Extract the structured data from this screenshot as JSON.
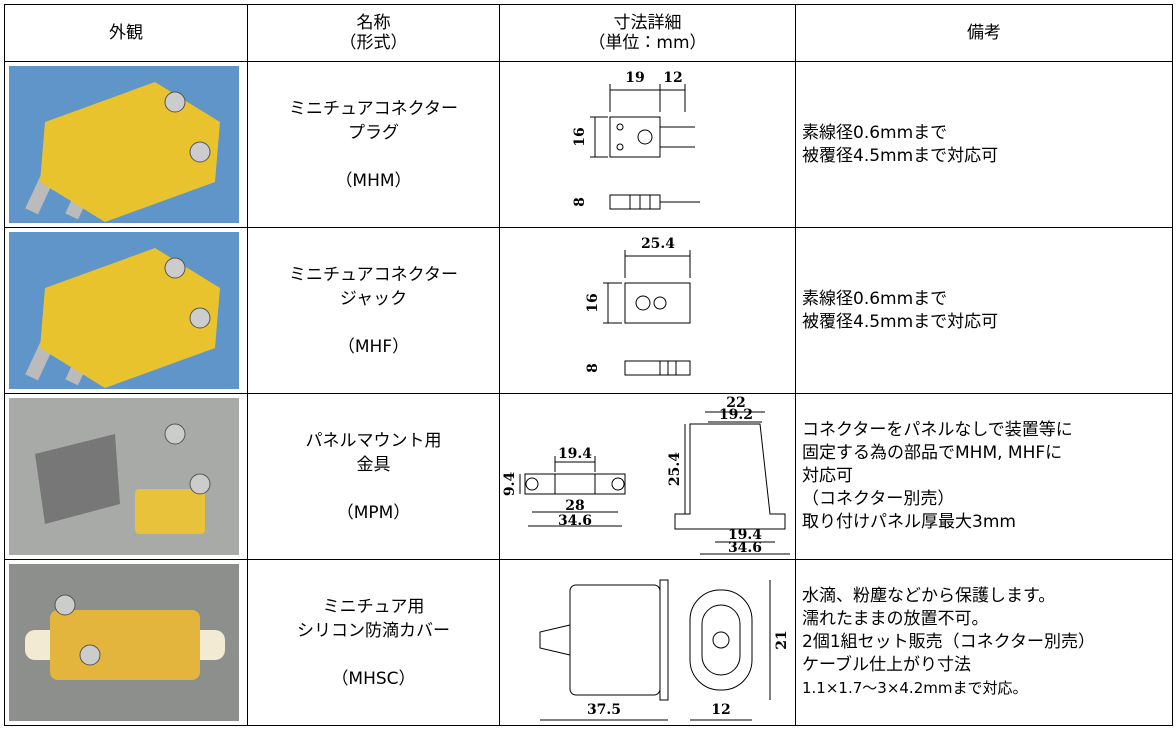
{
  "table": {
    "headers": [
      [
        "外観"
      ],
      [
        "名称",
        "（形式）"
      ],
      [
        "寸法詳細",
        "（単位：mm）"
      ],
      [
        "備考"
      ]
    ],
    "rows": [
      {
        "name": [
          "ミニチュアコネクター",
          "プラグ"
        ],
        "model": "（MHM）",
        "dims": [
          "19",
          "12",
          "16",
          "8"
        ],
        "notes": [
          "素線径0.6mmまで",
          "被覆径4.5mmまで対応可"
        ]
      },
      {
        "name": [
          "ミニチュアコネクター",
          "ジャック"
        ],
        "model": "（MHF）",
        "dims": [
          "25.4",
          "16",
          "8"
        ],
        "notes": [
          "素線径0.6mmまで",
          "被覆径4.5mmまで対応可"
        ]
      },
      {
        "name": [
          "パネルマウント用",
          "金具"
        ],
        "model": "（MPM）",
        "dims": [
          "19.4",
          "9.4",
          "28",
          "34.6",
          "22",
          "19.2",
          "25.4",
          "19.4",
          "34.6"
        ],
        "notes": [
          "コネクターをパネルなしで装置等に",
          "固定する為の部品でMHM, MHFに",
          "対応可",
          "（コネクター別売）",
          "取り付けパネル厚最大3mm"
        ]
      },
      {
        "name": [
          "ミニチュア用",
          "シリコン防滴カバー"
        ],
        "model": "（MHSC）",
        "dims": [
          "37.5",
          "12",
          "21"
        ],
        "notes": [
          "水滴、粉塵などから保護します。",
          "濡れたままの放置不可。",
          "2個1組セット販売（コネクター別売）",
          "ケーブル仕上がり寸法",
          "1.1×1.7〜3×4.2mmまで対応。"
        ]
      }
    ]
  }
}
